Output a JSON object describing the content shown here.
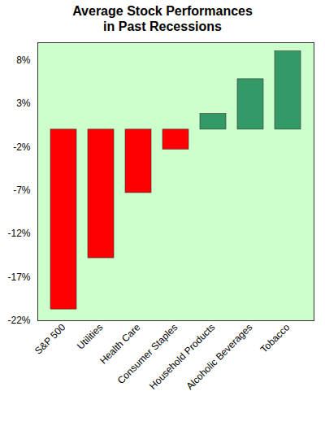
{
  "chart_data": {
    "type": "bar",
    "title": "Average Stock Performances in Past Recessions",
    "categories": [
      "S&P 500",
      "Utilities",
      "Health Care",
      "Consumer Staples",
      "Household Products",
      "Alcoholic Beverages",
      "Tobacco"
    ],
    "values": [
      -20.7,
      -14.8,
      -7.3,
      -2.3,
      1.8,
      5.8,
      9.0
    ],
    "colors": [
      "#ff0000",
      "#ff0000",
      "#ff0000",
      "#ff0000",
      "#339966",
      "#339966",
      "#339966"
    ],
    "ylim": [
      -22,
      10
    ],
    "yticks": [
      {
        "value": -22,
        "label": "-22%"
      },
      {
        "value": -17,
        "label": "-17%"
      },
      {
        "value": -12,
        "label": "-12%"
      },
      {
        "value": -7,
        "label": "-7%"
      },
      {
        "value": -2,
        "label": "-2%"
      },
      {
        "value": 3,
        "label": "3%"
      },
      {
        "value": 8,
        "label": "8%"
      }
    ],
    "grid": true
  }
}
